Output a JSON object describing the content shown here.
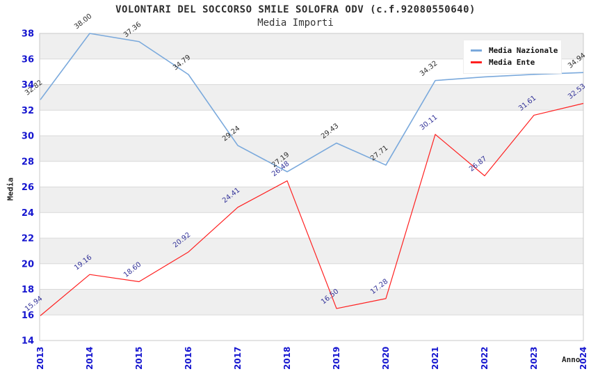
{
  "chart_data": {
    "type": "line",
    "title": "VOLONTARI DEL SOCCORSO SMILE SOLOFRA ODV (c.f.92080550640)",
    "subtitle": "Media Importi",
    "xlabel": "Anno",
    "ylabel": "Media",
    "x": [
      "2013",
      "2014",
      "2015",
      "2016",
      "2017",
      "2018",
      "2019",
      "2020",
      "2021",
      "2022",
      "2023",
      "2024"
    ],
    "ylim": [
      14,
      38
    ],
    "ytick_step": 2,
    "grid": "alternating-horizontal-bands",
    "legend_position": "top-right",
    "colors": {
      "axis_tick": "#1515cf",
      "band_gray": "#efefef",
      "gridline": "#d9d9d9",
      "plot_border": "#c9c9c9"
    },
    "series": [
      {
        "name": "Media Nazionale",
        "color": "#7aa9dc",
        "label_color": "#2e2e2e",
        "values": [
          32.82,
          38.0,
          37.36,
          34.79,
          29.24,
          27.19,
          29.43,
          27.71,
          34.32,
          34.6,
          34.8,
          34.94
        ],
        "point_labels": [
          "32.82",
          "38.00",
          "37.36",
          "34.79",
          "29.24",
          "27.19",
          "29.43",
          "27.71",
          "34.32",
          "",
          "",
          "34.94"
        ]
      },
      {
        "name": "Media Ente",
        "color": "#ff2020",
        "label_color": "#333399",
        "values": [
          15.94,
          19.16,
          18.6,
          20.92,
          24.41,
          26.48,
          16.5,
          17.28,
          30.11,
          26.87,
          31.61,
          32.53
        ],
        "point_labels": [
          "15.94",
          "19.16",
          "18.60",
          "20.92",
          "24.41",
          "26.48",
          "16.50",
          "17.28",
          "30.11",
          "26.87",
          "31.61",
          "32.53"
        ]
      }
    ]
  }
}
